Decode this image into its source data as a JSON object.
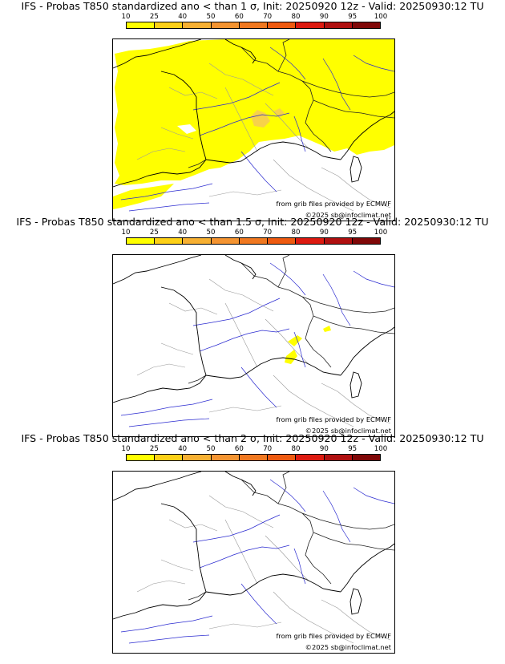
{
  "legend": {
    "labels": [
      "10",
      "25",
      "40",
      "50",
      "60",
      "70",
      "80",
      "90",
      "95",
      "100"
    ],
    "colors": [
      "#ffff00",
      "#fdd017",
      "#f7b032",
      "#f49431",
      "#f07820",
      "#ee5a10",
      "#dd1a10",
      "#b01010",
      "#800808",
      "#4a0404"
    ]
  },
  "panels": [
    {
      "title": "IFS - Probas T850  standardized ano < than 1 σ, Init: 20250920 12z - Valid: 20250930:12 TU",
      "credit_source": "from grib files provided by ECMWF",
      "credit_copyright": "©2025 sb@infoclimat.net",
      "coverage": "extensive"
    },
    {
      "title": "IFS - Probas T850  standardized ano < than 1.5 σ, Init: 20250920 12z - Valid: 20250930:12 TU",
      "credit_source": "from grib files provided by ECMWF",
      "credit_copyright": "©2025 sb@infoclimat.net",
      "coverage": "small"
    },
    {
      "title": "IFS - Probas T850  standardized ano < than 2 σ, Init: 20250920 12z - Valid: 20250930:12 TU",
      "credit_source": "from grib files provided by ECMWF",
      "credit_copyright": "©2025 sb@infoclimat.net",
      "coverage": "none"
    }
  ]
}
